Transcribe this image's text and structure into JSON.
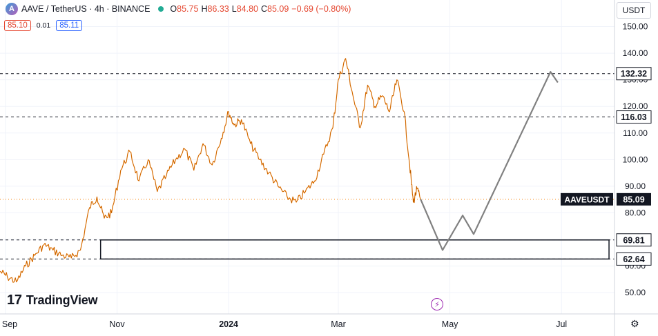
{
  "header": {
    "symbol": "AAVE / TetherUS · 4h · BINANCE",
    "open_label": "O",
    "open": "85.75",
    "high_label": "H",
    "high": "86.33",
    "low_label": "L",
    "low": "84.80",
    "close_label": "C",
    "close": "85.09",
    "change": "−0.69 (−0.80%)"
  },
  "quote": {
    "sell": "85.10",
    "spread": "0.01",
    "buy": "85.11"
  },
  "unit": "USDT",
  "brand": "TradingView",
  "icons": {
    "logo": "aave-logo-icon",
    "status": "market-status-dot-icon",
    "bolt": "lightning-icon",
    "settings": "gear-icon"
  },
  "colors": {
    "candles": "#f57c00",
    "projection": "#808080",
    "level_line": "#131722",
    "price_label_bg": "#131722",
    "status_dot": "#22ab94"
  },
  "chart_data": {
    "type": "line",
    "ylim": [
      42,
      160
    ],
    "x_tick_labels": [
      "Sep",
      "Nov",
      "2024",
      "Mar",
      "May",
      "Jul"
    ],
    "x_tick_dates": [
      "2023-09-01",
      "2023-11-01",
      "2024-01-01",
      "2024-03-01",
      "2024-05-01",
      "2024-07-01"
    ],
    "xlim": [
      "2023-08-29",
      "2024-07-30"
    ],
    "y_ticks": [
      50,
      60,
      70,
      80,
      90,
      100,
      110,
      120,
      130,
      140,
      150
    ],
    "y_tick_labels": [
      "50.00",
      "60.00",
      "70.00",
      "80.00",
      "90.00",
      "100.00",
      "110.00",
      "120.00",
      "130.00",
      "140.00",
      "150.00"
    ],
    "series": [
      {
        "values_kind": "close",
        "x": [
          "2023-08-29",
          "2023-09-02",
          "2023-09-07",
          "2023-09-12",
          "2023-09-17",
          "2023-09-22",
          "2023-09-27",
          "2023-10-02",
          "2023-10-07",
          "2023-10-12",
          "2023-10-17",
          "2023-10-21",
          "2023-10-25",
          "2023-10-29",
          "2023-11-03",
          "2023-11-08",
          "2023-11-13",
          "2023-11-18",
          "2023-11-23",
          "2023-11-28",
          "2023-12-03",
          "2023-12-08",
          "2023-12-13",
          "2023-12-18",
          "2023-12-23",
          "2023-12-28",
          "2024-01-01",
          "2024-01-04",
          "2024-01-08",
          "2024-01-13",
          "2024-01-18",
          "2024-01-23",
          "2024-01-28",
          "2024-02-02",
          "2024-02-07",
          "2024-02-12",
          "2024-02-17",
          "2024-02-22",
          "2024-02-27",
          "2024-03-01",
          "2024-03-05",
          "2024-03-09",
          "2024-03-13",
          "2024-03-17",
          "2024-03-21",
          "2024-03-25",
          "2024-03-29",
          "2024-04-02",
          "2024-04-06",
          "2024-04-09",
          "2024-04-11",
          "2024-04-13",
          "2024-04-15"
        ],
        "values": [
          58,
          56,
          54,
          60,
          64,
          68,
          66,
          64,
          63,
          66,
          82,
          86,
          78,
          80,
          96,
          103,
          92,
          100,
          88,
          94,
          100,
          104,
          96,
          106,
          98,
          108,
          118,
          113,
          115,
          106,
          100,
          95,
          90,
          86,
          84,
          88,
          92,
          102,
          112,
          130,
          138,
          124,
          112,
          128,
          120,
          124,
          118,
          130,
          118,
          98,
          84,
          89,
          85.09
        ]
      }
    ],
    "projection": {
      "x": [
        "2024-04-15",
        "2024-04-27",
        "2024-05-08",
        "2024-05-14",
        "2024-06-25",
        "2024-06-29"
      ],
      "values": [
        85.09,
        66,
        79,
        72,
        133,
        129
      ]
    },
    "levels": [
      {
        "value": 132.32,
        "label": "132.32"
      },
      {
        "value": 116.03,
        "label": "116.03"
      },
      {
        "value": 69.81,
        "label": "69.81"
      },
      {
        "value": 62.64,
        "label": "62.64"
      }
    ],
    "zone": {
      "top": 69.81,
      "bottom": 62.64,
      "x_start": "2023-10-23",
      "x_end": "2024-07-27"
    },
    "last_price": {
      "label": "AAVEUSDT",
      "value": 85.09,
      "value_label": "85.09"
    }
  }
}
